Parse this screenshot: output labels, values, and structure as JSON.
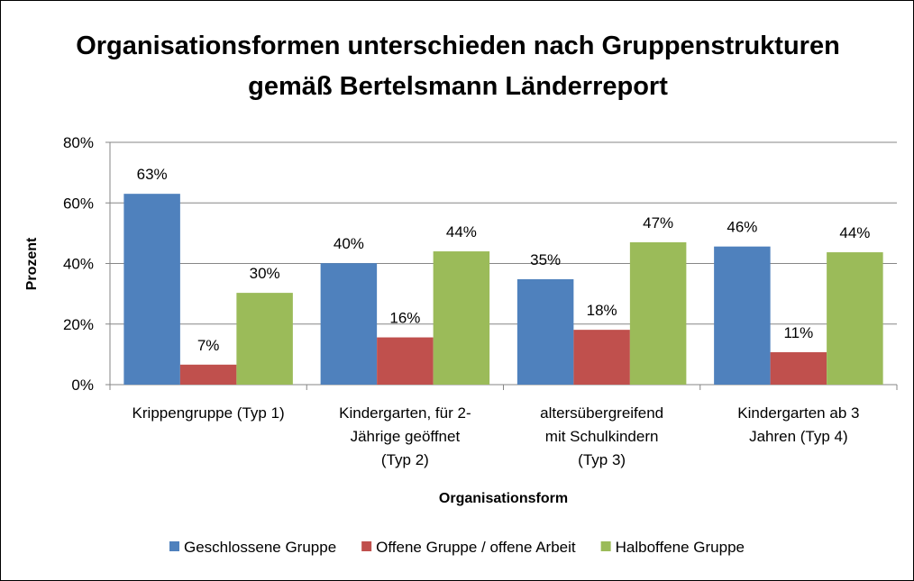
{
  "chart_data": {
    "type": "bar",
    "title": "Organisationsformen unterschieden nach Gruppenstrukturen gemäß Bertelsmann Länderreport",
    "x_label": "Organisationsform",
    "y_label": "Prozent",
    "categories": [
      [
        "Krippengruppe (Typ 1)"
      ],
      [
        "Kindergarten, für 2-",
        "Jährige geöffnet",
        "(Typ 2)"
      ],
      [
        "altersübergreifend",
        "mit Schulkindern",
        "(Typ 3)"
      ],
      [
        "Kindergarten ab 3",
        "Jahren (Typ 4)"
      ]
    ],
    "series": [
      {
        "name": "Geschlossene Gruppe",
        "color": "#4f81bd",
        "values": [
          63.0,
          40.1,
          34.8,
          45.6
        ],
        "value_labels": [
          "63%",
          "40%",
          "35%",
          "46%"
        ]
      },
      {
        "name": "Offene Gruppe / offene Arbeit",
        "color": "#c0504d",
        "values": [
          6.6,
          15.6,
          18.1,
          10.7
        ],
        "value_labels": [
          "7%",
          "16%",
          "18%",
          "11%"
        ]
      },
      {
        "name": "Halboffene Gruppe",
        "color": "#9bbb59",
        "values": [
          30.3,
          44.0,
          47.0,
          43.7
        ],
        "value_labels": [
          "30%",
          "44%",
          "47%",
          "44%"
        ]
      }
    ],
    "ylim": [
      0,
      80
    ],
    "yticks": [
      {
        "value": 0,
        "label": "0%"
      },
      {
        "value": 20,
        "label": "20%"
      },
      {
        "value": 40,
        "label": "40%"
      },
      {
        "value": 60,
        "label": "60%"
      },
      {
        "value": 80,
        "label": "80%"
      }
    ],
    "grid": true,
    "legend": "bottom"
  }
}
